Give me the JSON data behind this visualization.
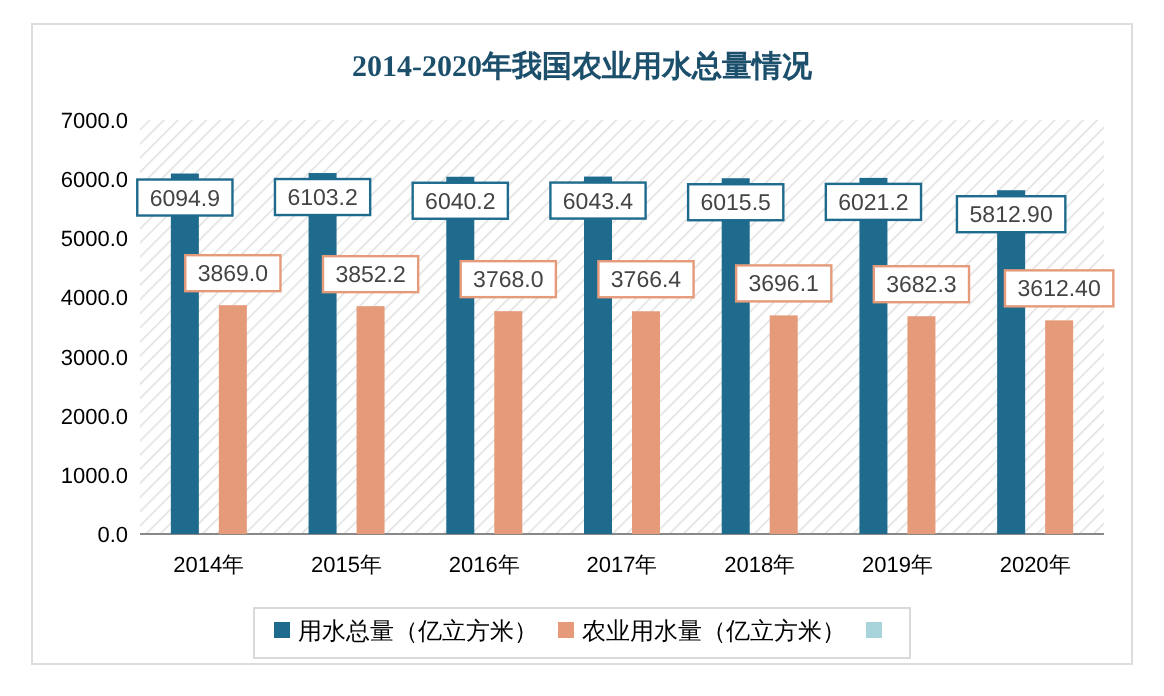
{
  "chart_data": {
    "type": "bar",
    "title": "2014-2020年我国农业用水总量情况",
    "categories": [
      "2014年",
      "2015年",
      "2016年",
      "2017年",
      "2018年",
      "2019年",
      "2020年"
    ],
    "series": [
      {
        "name": "用水总量（亿立方米）",
        "color": "#1f6b8e",
        "values": [
          6094.9,
          6103.2,
          6040.2,
          6043.4,
          6015.5,
          6021.2,
          5812.9
        ],
        "value_labels": [
          "6094.9",
          "6103.2",
          "6040.2",
          "6043.4",
          "6015.5",
          "6021.2",
          "5812.90"
        ]
      },
      {
        "name": "农业用水量（亿立方米）",
        "color": "#e59a7a",
        "values": [
          3869.0,
          3852.2,
          3768.0,
          3766.4,
          3696.1,
          3682.3,
          3612.4
        ],
        "value_labels": [
          "3869.0",
          "3852.2",
          "3768.0",
          "3766.4",
          "3696.1",
          "3682.3",
          "3612.40"
        ]
      },
      {
        "color": "#a8d4dc",
        "values": [
          null,
          null,
          null,
          null,
          null,
          null,
          null
        ]
      }
    ],
    "ylim": [
      0,
      7000
    ],
    "yticks": [
      {
        "value": 0,
        "label": "0.0"
      },
      {
        "value": 1000,
        "label": "1000.0"
      },
      {
        "value": 2000,
        "label": "2000.0"
      },
      {
        "value": 3000,
        "label": "3000.0"
      },
      {
        "value": 4000,
        "label": "4000.0"
      },
      {
        "value": 5000,
        "label": "5000.0"
      },
      {
        "value": 6000,
        "label": "6000.0"
      },
      {
        "value": 7000,
        "label": "7000.0"
      }
    ],
    "grid": false,
    "legend": "bottom"
  }
}
